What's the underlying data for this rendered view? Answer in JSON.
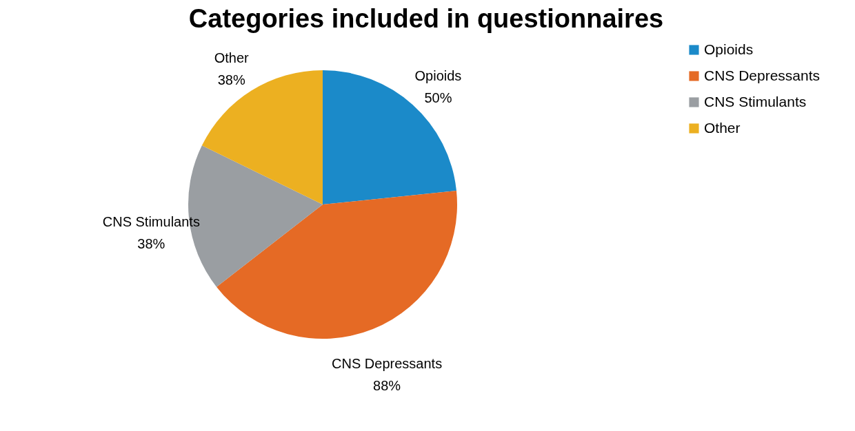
{
  "chart_data": {
    "type": "pie",
    "title": "Categories included in questionnaires",
    "categories": [
      "Opioids",
      "CNS Depressants",
      "CNS Stimulants",
      "Other"
    ],
    "values": [
      50,
      88,
      38,
      38
    ],
    "value_labels": [
      "50%",
      "88%",
      "38%",
      "38%"
    ],
    "colors": [
      "#1b8ac9",
      "#e56a25",
      "#9a9ea2",
      "#ecb021"
    ],
    "legend": "right"
  }
}
